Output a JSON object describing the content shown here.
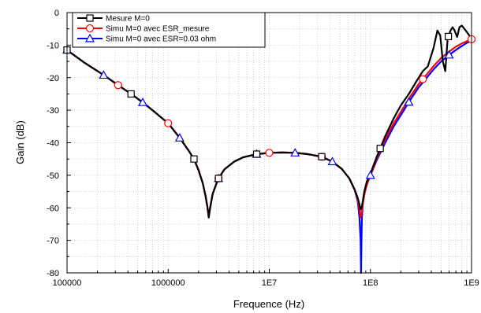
{
  "chart_data": {
    "type": "line",
    "xlabel": "Frequence (Hz)",
    "ylabel": "Gain (dB)",
    "x_scale": "log",
    "xlim": [
      100000,
      1000000000
    ],
    "ylim": [
      -80,
      0
    ],
    "grid": true,
    "legend_position": "top-left",
    "x_ticks": [
      {
        "value": 100000,
        "label": "100000"
      },
      {
        "value": 1000000,
        "label": "1000000"
      },
      {
        "value": 10000000,
        "label": "1E7"
      },
      {
        "value": 100000000,
        "label": "1E8"
      },
      {
        "value": 1000000000,
        "label": "1E9"
      }
    ],
    "y_ticks": [
      {
        "value": 0,
        "label": "0"
      },
      {
        "value": -10,
        "label": "-10"
      },
      {
        "value": -20,
        "label": "-20"
      },
      {
        "value": -30,
        "label": "-30"
      },
      {
        "value": -40,
        "label": "-40"
      },
      {
        "value": -50,
        "label": "-50"
      },
      {
        "value": -60,
        "label": "-60"
      },
      {
        "value": -70,
        "label": "-70"
      },
      {
        "value": -80,
        "label": "-80"
      }
    ],
    "series": [
      {
        "name": "Mesure M=0",
        "color": "#000000",
        "marker": "square",
        "x": [
          100000,
          150000,
          230000,
          320000,
          430000,
          560000,
          700000,
          850000,
          1000000,
          1300000,
          1600000,
          1800000,
          2000000,
          2200000,
          2350000,
          2450000,
          2520000,
          2600000,
          2750000,
          3100000,
          3600000,
          4500000,
          5500000,
          7500000,
          10000000,
          13500000,
          18000000,
          24000000,
          33000000,
          42000000,
          52000000,
          62000000,
          70000000,
          75000000,
          78000000,
          80000000,
          82000000,
          84000000,
          87000000,
          92000000,
          100000000,
          115000000,
          140000000,
          170000000,
          200000000,
          240000000,
          280000000,
          330000000,
          370000000,
          420000000,
          460000000,
          490000000,
          520000000,
          550000000,
          580000000,
          620000000,
          650000000,
          680000000,
          720000000,
          760000000,
          800000000,
          850000000,
          900000000,
          950000000,
          1000000000
        ],
        "y": [
          -11.5,
          -15.5,
          -19.2,
          -22.3,
          -25.0,
          -27.6,
          -30.0,
          -32.2,
          -34.0,
          -38.5,
          -42.5,
          -45.0,
          -48.5,
          -52.5,
          -56.5,
          -60.0,
          -63.0,
          -60.0,
          -55.8,
          -51.3,
          -48.2,
          -45.8,
          -44.5,
          -43.5,
          -43.1,
          -43.0,
          -43.1,
          -43.5,
          -44.3,
          -45.8,
          -48.0,
          -51.0,
          -54.5,
          -57.0,
          -59.0,
          -60.5,
          -60.0,
          -58.0,
          -55.0,
          -52.0,
          -49.5,
          -44.5,
          -38.0,
          -32.5,
          -28.5,
          -25.0,
          -21.5,
          -18.0,
          -16.5,
          -11.0,
          -5.5,
          -7.0,
          -15.0,
          -18.0,
          -8.0,
          -5.5,
          -4.5,
          -5.5,
          -7.5,
          -4.5,
          -4.0,
          -5.0,
          -6.0,
          -7.0,
          -8.0
        ],
        "marker_x": [
          100000,
          430000,
          1800000,
          3150000,
          7500000,
          33000000,
          125000000,
          590000000
        ]
      },
      {
        "name": "Simu M=0 avec ESR_mesure",
        "color": "#ff0000",
        "marker": "circle",
        "x": [
          100000,
          150000,
          230000,
          320000,
          430000,
          560000,
          700000,
          850000,
          1000000,
          1300000,
          1600000,
          1800000,
          2000000,
          2200000,
          2350000,
          2450000,
          2520000,
          2600000,
          2750000,
          3100000,
          3600000,
          4500000,
          5500000,
          7500000,
          10000000,
          13500000,
          18000000,
          24000000,
          33000000,
          42000000,
          52000000,
          62000000,
          70000000,
          75000000,
          78000000,
          80000000,
          82000000,
          84000000,
          87000000,
          92000000,
          100000000,
          115000000,
          140000000,
          170000000,
          200000000,
          240000000,
          300000000,
          350000000,
          420000000,
          500000000,
          600000000,
          700000000,
          800000000,
          900000000,
          1000000000
        ],
        "y": [
          -11.5,
          -15.5,
          -19.2,
          -22.3,
          -25.0,
          -27.6,
          -30.0,
          -32.2,
          -34.0,
          -38.5,
          -42.5,
          -45.0,
          -48.5,
          -52.5,
          -56.5,
          -60.0,
          -62.8,
          -60.0,
          -55.8,
          -51.3,
          -48.2,
          -45.8,
          -44.5,
          -43.5,
          -43.1,
          -43.0,
          -43.1,
          -43.5,
          -44.3,
          -45.8,
          -48.0,
          -51.0,
          -54.5,
          -57.5,
          -60.5,
          -63.0,
          -61.5,
          -59.0,
          -56.0,
          -53.0,
          -50.0,
          -45.0,
          -39.0,
          -34.0,
          -30.5,
          -26.5,
          -22.0,
          -19.5,
          -16.5,
          -14.0,
          -12.0,
          -10.5,
          -9.5,
          -8.8,
          -8.2
        ],
        "marker_x": [
          320000,
          1000000,
          3150000,
          10000000,
          33000000,
          330000000,
          1000000000
        ]
      },
      {
        "name": "Simu M=0 avec ESR=0.03 ohm",
        "color": "#0000ff",
        "marker": "triangle",
        "x": [
          100000,
          150000,
          230000,
          320000,
          430000,
          560000,
          700000,
          850000,
          1000000,
          1300000,
          1600000,
          1800000,
          2000000,
          2200000,
          2350000,
          2450000,
          2520000,
          2600000,
          2750000,
          3100000,
          3600000,
          4500000,
          5500000,
          7500000,
          10000000,
          13500000,
          18000000,
          24000000,
          33000000,
          42000000,
          52000000,
          62000000,
          70000000,
          75000000,
          78000000,
          80000000,
          80800000,
          81500000,
          82500000,
          84000000,
          87000000,
          92000000,
          100000000,
          115000000,
          140000000,
          170000000,
          200000000,
          240000000,
          300000000,
          350000000,
          420000000,
          500000000,
          600000000,
          700000000,
          800000000,
          900000000,
          1000000000
        ],
        "y": [
          -11.5,
          -15.5,
          -19.2,
          -22.3,
          -25.0,
          -27.6,
          -30.0,
          -32.2,
          -34.0,
          -38.5,
          -42.5,
          -45.0,
          -48.5,
          -52.5,
          -56.5,
          -60.0,
          -62.5,
          -60.0,
          -55.8,
          -51.3,
          -48.2,
          -45.8,
          -44.5,
          -43.5,
          -43.1,
          -43.0,
          -43.1,
          -43.5,
          -44.3,
          -45.8,
          -48.0,
          -51.0,
          -54.5,
          -58.0,
          -63.0,
          -70.0,
          -80.0,
          -70.0,
          -63.0,
          -59.0,
          -55.5,
          -52.5,
          -50.0,
          -45.5,
          -40.0,
          -35.0,
          -31.5,
          -27.5,
          -23.0,
          -20.5,
          -17.5,
          -15.0,
          -13.0,
          -11.5,
          -10.3,
          -9.3,
          -8.6
        ],
        "marker_x": [
          100000,
          230000,
          560000,
          1300000,
          3150000,
          7500000,
          18000000,
          42000000,
          100000000,
          240000000,
          600000000
        ]
      }
    ]
  }
}
